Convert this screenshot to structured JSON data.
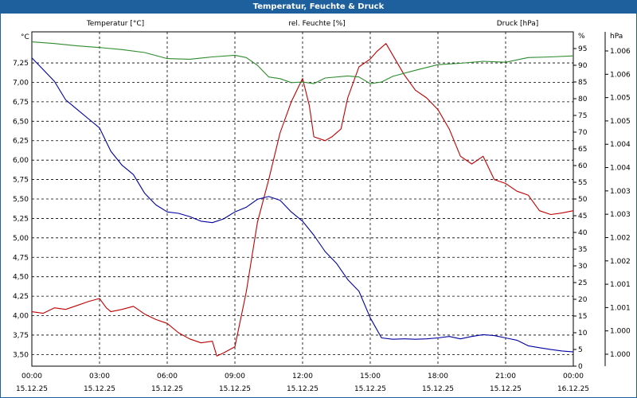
{
  "chart_data": {
    "type": "line",
    "title": "Temperatur, Feuchte & Druck",
    "x_ticks": [
      {
        "time": "00:00",
        "date": "15.12.25"
      },
      {
        "time": "03:00",
        "date": "15.12.25"
      },
      {
        "time": "06:00",
        "date": "15.12.25"
      },
      {
        "time": "09:00",
        "date": "15.12.25"
      },
      {
        "time": "12:00",
        "date": "15.12.25"
      },
      {
        "time": "15:00",
        "date": "15.12.25"
      },
      {
        "time": "18:00",
        "date": "15.12.25"
      },
      {
        "time": "21:00",
        "date": "15.12.25"
      },
      {
        "time": "00:00",
        "date": "16.12.25"
      }
    ],
    "x_range_hours": [
      0,
      24
    ],
    "axes": {
      "temperature": {
        "unit_label": "°C",
        "title": "Temperatur [°C]",
        "ticks": [
          "3,50",
          "3,75",
          "4,00",
          "4,25",
          "4,50",
          "4,75",
          "5,00",
          "5,25",
          "5,50",
          "5,75",
          "6,00",
          "6,25",
          "6,50",
          "6,75",
          "7,00",
          "7,25"
        ],
        "range": [
          3.35,
          7.65
        ],
        "color": "#c00000"
      },
      "humidity": {
        "unit_label": "%",
        "title": "rel. Feuchte [%]",
        "ticks": [
          "0",
          "5",
          "10",
          "15",
          "20",
          "25",
          "30",
          "35",
          "40",
          "45",
          "50",
          "55",
          "60",
          "65",
          "70",
          "75",
          "80",
          "85",
          "90",
          "95"
        ],
        "range": [
          0,
          100
        ],
        "color": "#2e8b2e"
      },
      "pressure": {
        "unit_label": "hPa",
        "title": "Druck [hPa]",
        "ticks": [
          "1.000",
          "1.000",
          "1.001",
          "1.001",
          "1.002",
          "1.002",
          "1.003",
          "1.003",
          "1.004",
          "1.004",
          "1.005",
          "1.005",
          "1.006",
          "1.006"
        ],
        "color": "#0000a0"
      }
    },
    "series": [
      {
        "name": "Temperatur",
        "axis": "temperature",
        "x": [
          0,
          0.5,
          1,
          1.5,
          2,
          2.5,
          3,
          3.3,
          3.5,
          4,
          4.5,
          5,
          5.5,
          6,
          6.5,
          7,
          7.5,
          8,
          8.2,
          8.5,
          9,
          9.5,
          10,
          10.5,
          11,
          11.5,
          12,
          12.3,
          12.5,
          13,
          13.3,
          13.7,
          14,
          14.5,
          15,
          15.3,
          15.7,
          16,
          16.5,
          17,
          17.5,
          18,
          18.5,
          19,
          19.5,
          20,
          20.5,
          21,
          21.5,
          22,
          22.5,
          23,
          23.5,
          24
        ],
        "values": [
          4.05,
          4.03,
          4.1,
          4.08,
          4.13,
          4.18,
          4.22,
          4.1,
          4.05,
          4.08,
          4.12,
          4.02,
          3.95,
          3.9,
          3.78,
          3.7,
          3.65,
          3.67,
          3.48,
          3.52,
          3.6,
          4.3,
          5.2,
          5.75,
          6.35,
          6.75,
          7.05,
          6.7,
          6.3,
          6.25,
          6.3,
          6.4,
          6.8,
          7.2,
          7.3,
          7.4,
          7.5,
          7.35,
          7.1,
          6.9,
          6.8,
          6.65,
          6.4,
          6.05,
          5.95,
          6.05,
          5.75,
          5.7,
          5.6,
          5.55,
          5.35,
          5.3,
          5.32,
          5.35
        ]
      },
      {
        "name": "rel. Feuchte",
        "axis": "humidity",
        "x": [
          0,
          1,
          2,
          3,
          4,
          5,
          6,
          7,
          8,
          9,
          9.5,
          10,
          10.5,
          11,
          11.5,
          12,
          12.5,
          13,
          14,
          14.5,
          15,
          15.5,
          16,
          17,
          18,
          19,
          20,
          21,
          22,
          23,
          24
        ],
        "values": [
          97,
          96.5,
          95.8,
          95.3,
          94.7,
          93.8,
          92,
          91.8,
          92.5,
          93,
          92.3,
          90,
          86.5,
          86,
          84.8,
          85,
          84.5,
          86.2,
          86.8,
          86.5,
          84.5,
          85,
          86.7,
          88.5,
          90.2,
          90.6,
          91.2,
          90.9,
          92.3,
          92.5,
          92.8
        ]
      },
      {
        "name": "Druck",
        "axis": "pressure",
        "x": [
          0,
          0.5,
          1,
          1.5,
          2,
          2.5,
          3,
          3.5,
          4,
          4.5,
          5,
          5.5,
          6,
          6.5,
          7,
          7.5,
          8,
          8.5,
          9,
          9.5,
          10,
          10.5,
          11,
          11.5,
          12,
          12.5,
          13,
          13.5,
          14,
          14.5,
          15,
          15.5,
          16,
          16.5,
          17,
          17.5,
          18,
          18.5,
          19,
          19.5,
          20,
          20.5,
          21,
          21.5,
          22,
          22.5,
          23,
          23.5,
          24
        ],
        "values": [
          1006.35,
          1006.1,
          1005.85,
          1005.45,
          1005.25,
          1005.05,
          1004.85,
          1004.35,
          1004.05,
          1003.85,
          1003.45,
          1003.2,
          1003.05,
          1003.02,
          1002.95,
          1002.85,
          1002.82,
          1002.9,
          1003.05,
          1003.15,
          1003.32,
          1003.38,
          1003.3,
          1003.05,
          1002.85,
          1002.55,
          1002.2,
          1001.95,
          1001.6,
          1001.35,
          1000.78,
          1000.35,
          1000.32,
          1000.33,
          1000.32,
          1000.33,
          1000.35,
          1000.38,
          1000.33,
          1000.38,
          1000.42,
          1000.4,
          1000.35,
          1000.3,
          1000.18,
          1000.14,
          1000.1,
          1000.07,
          1000.05
        ]
      }
    ]
  }
}
